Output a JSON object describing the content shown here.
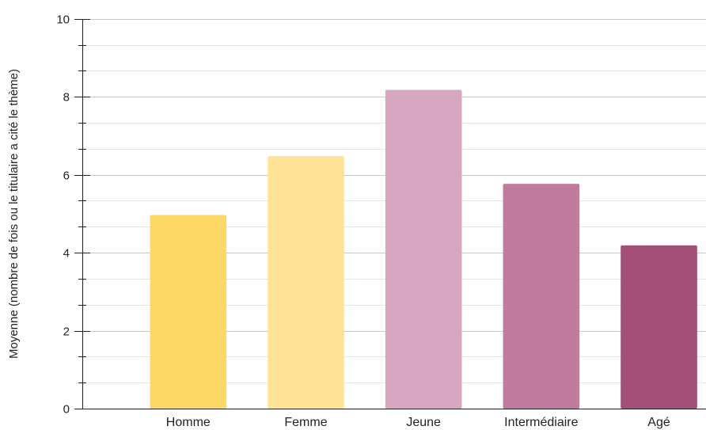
{
  "chart_data": {
    "type": "bar",
    "categories": [
      "Homme",
      "Femme",
      "Jeune",
      "Intermédiaire",
      "Agé"
    ],
    "values": [
      4.97,
      6.48,
      8.18,
      5.77,
      4.19
    ],
    "colors": [
      "#fdd867",
      "#fee397",
      "#d7a7c2",
      "#c07b9f",
      "#a24e77"
    ],
    "title": "",
    "xlabel": "",
    "ylabel": "Moyenne (nombre de fois ou le titulaire a cité le thème)",
    "ylim": [
      0,
      10
    ],
    "yticks": [
      0,
      2,
      4,
      6,
      8,
      10
    ],
    "minor_tick_step": 0.667,
    "grid": true,
    "legend": "none"
  }
}
